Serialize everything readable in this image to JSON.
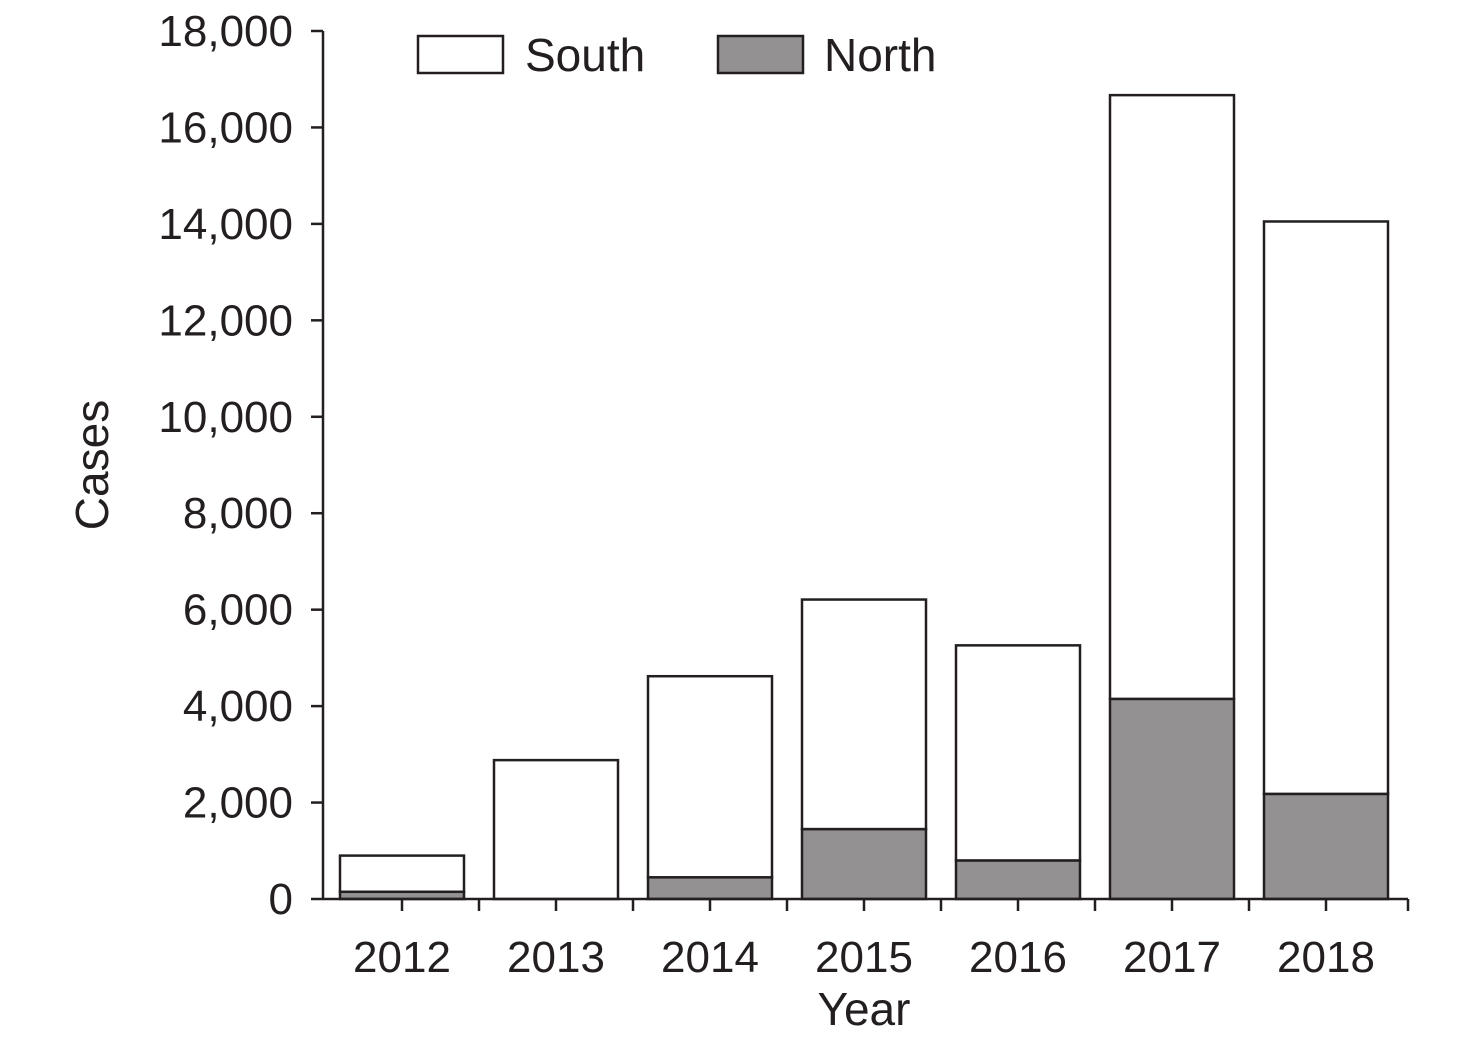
{
  "chart_data": {
    "type": "bar",
    "stacked": true,
    "categories": [
      "2012",
      "2013",
      "2014",
      "2015",
      "2016",
      "2017",
      "2018"
    ],
    "series": [
      {
        "name": "North",
        "values": [
          150,
          0,
          450,
          1450,
          800,
          4150,
          2180
        ],
        "color": "#939192"
      },
      {
        "name": "South",
        "values": [
          750,
          2880,
          4170,
          4760,
          4460,
          12520,
          11870
        ],
        "color": "#ffffff"
      }
    ],
    "totals": [
      900,
      2880,
      4620,
      6210,
      5260,
      16670,
      14050
    ],
    "xlabel": "Year",
    "ylabel": "Cases",
    "ylim": [
      0,
      18000
    ],
    "yticks": [
      0,
      2000,
      4000,
      6000,
      8000,
      10000,
      12000,
      14000,
      16000,
      18000
    ],
    "ytick_labels": [
      "0",
      "2,000",
      "4,000",
      "6,000",
      "8,000",
      "10,000",
      "12,000",
      "14,000",
      "16,000",
      "18,000"
    ],
    "grid": false,
    "legend": {
      "position": "top-left",
      "entries": [
        "South",
        "North"
      ]
    },
    "stroke_color": "#231f20"
  }
}
